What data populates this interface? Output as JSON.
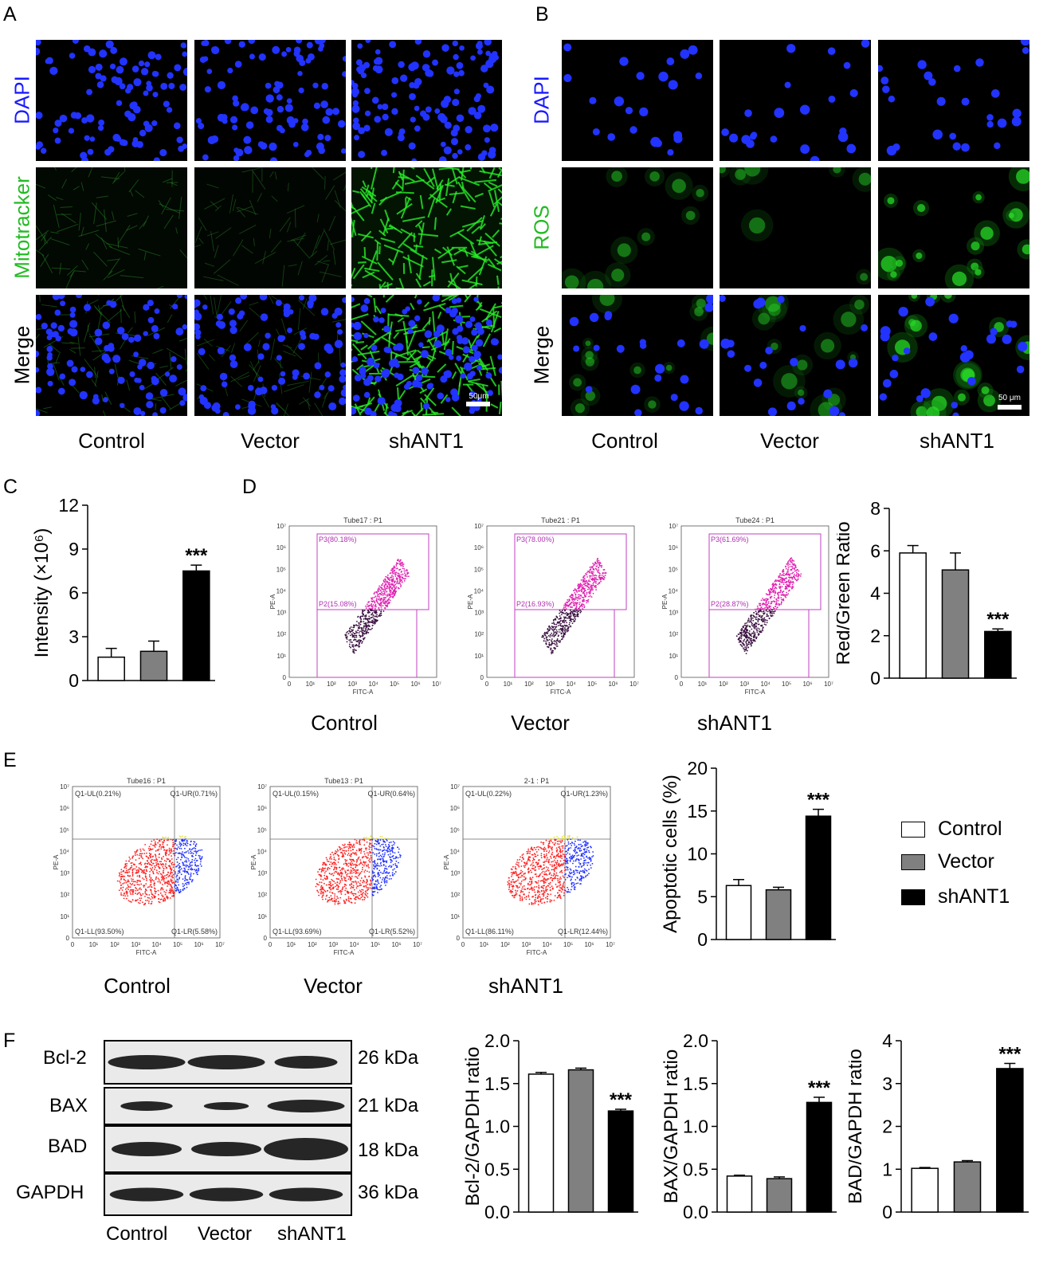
{
  "panels": {
    "A": "A",
    "B": "B",
    "C": "C",
    "D": "D",
    "E": "E",
    "F": "F"
  },
  "groups": [
    "Control",
    "Vector",
    "shANT1"
  ],
  "panelA": {
    "rows": [
      {
        "label": "DAPI",
        "color": "#1a1aff"
      },
      {
        "label": "Mitotracker",
        "color": "#22bb22"
      },
      {
        "label": "Merge",
        "color": "#000000"
      }
    ],
    "scale_bar": "50μm"
  },
  "panelB": {
    "rows": [
      {
        "label": "DAPI",
        "color": "#1a1aff"
      },
      {
        "label": "ROS",
        "color": "#22bb22"
      },
      {
        "label": "Merge",
        "color": "#000000"
      }
    ],
    "scale_bar": "50 μm"
  },
  "panelD_flow": [
    {
      "title": "Tube17 : P1",
      "p3": "P3(80.18%)",
      "p2": "P2(15.08%)"
    },
    {
      "title": "Tube21 : P1",
      "p3": "P3(78.00%)",
      "p2": "P2(16.93%)"
    },
    {
      "title": "Tube24 : P1",
      "p3": "P3(61.69%)",
      "p2": "P2(28.87%)"
    }
  ],
  "panelE_flow": [
    {
      "title": "Tube16 : P1",
      "ul": "Q1-UL(0.21%)",
      "ur": "Q1-UR(0.71%)",
      "ll": "Q1-LL(93.50%)",
      "lr": "Q1-LR(5.58%)"
    },
    {
      "title": "Tube13 : P1",
      "ul": "Q1-UL(0.15%)",
      "ur": "Q1-UR(0.64%)",
      "ll": "Q1-LL(93.69%)",
      "lr": "Q1-LR(5.52%)"
    },
    {
      "title": "2-1 : P1",
      "ul": "Q1-UL(0.22%)",
      "ur": "Q1-UR(1.23%)",
      "ll": "Q1-LL(86.11%)",
      "lr": "Q1-LR(12.44%)"
    }
  ],
  "flow_axes": {
    "x": "FITC-A",
    "y": "PE-A",
    "ticks": [
      "0",
      "10¹",
      "10²",
      "10³",
      "10⁴",
      "10⁵",
      "10⁶",
      "10⁷"
    ]
  },
  "legend": [
    {
      "label": "Control",
      "color": "#ffffff"
    },
    {
      "label": "Vector",
      "color": "#808080"
    },
    {
      "label": "shANT1",
      "color": "#000000"
    }
  ],
  "western": {
    "bands": [
      {
        "name": "Bcl-2",
        "kda": "26 kDa"
      },
      {
        "name": "BAX",
        "kda": "21 kDa"
      },
      {
        "name": "BAD",
        "kda": "18 kDa"
      },
      {
        "name": "GAPDH",
        "kda": "36 kDa"
      }
    ]
  },
  "chart_data": [
    {
      "id": "C",
      "type": "bar",
      "categories": [
        "Control",
        "Vector",
        "shANT1"
      ],
      "values": [
        1.6,
        2.0,
        7.5
      ],
      "errors": [
        0.6,
        0.7,
        0.4
      ],
      "ylabel": "Intensity (×10⁶)",
      "ylim": [
        0,
        12
      ],
      "yticks": [
        0,
        3,
        6,
        9,
        12
      ],
      "significance": [
        "",
        "",
        "***"
      ],
      "colors": [
        "#ffffff",
        "#808080",
        "#000000"
      ]
    },
    {
      "id": "D",
      "type": "bar",
      "categories": [
        "Control",
        "Vector",
        "shANT1"
      ],
      "values": [
        5.9,
        5.1,
        2.2
      ],
      "errors": [
        0.35,
        0.8,
        0.12
      ],
      "ylabel": "Red/Green Ratio",
      "ylim": [
        0,
        8
      ],
      "yticks": [
        0,
        2,
        4,
        6,
        8
      ],
      "significance": [
        "",
        "",
        "***"
      ],
      "colors": [
        "#ffffff",
        "#808080",
        "#000000"
      ]
    },
    {
      "id": "E",
      "type": "bar",
      "categories": [
        "Control",
        "Vector",
        "shANT1"
      ],
      "values": [
        6.3,
        5.8,
        14.4
      ],
      "errors": [
        0.7,
        0.3,
        0.8
      ],
      "ylabel": "Apoptotic cells (%)",
      "ylim": [
        0,
        20
      ],
      "yticks": [
        0,
        5,
        10,
        15,
        20
      ],
      "significance": [
        "",
        "",
        "***"
      ],
      "colors": [
        "#ffffff",
        "#808080",
        "#000000"
      ]
    },
    {
      "id": "F1",
      "type": "bar",
      "categories": [
        "Control",
        "Vector",
        "shANT1"
      ],
      "values": [
        1.61,
        1.66,
        1.18
      ],
      "errors": [
        0.02,
        0.02,
        0.02
      ],
      "ylabel": "Bcl-2/GAPDH ratio",
      "ylim": [
        0,
        2.0
      ],
      "yticks": [
        "0.0",
        "0.5",
        "1.0",
        "1.5",
        "2.0"
      ],
      "significance": [
        "",
        "",
        "***"
      ],
      "colors": [
        "#ffffff",
        "#808080",
        "#000000"
      ]
    },
    {
      "id": "F2",
      "type": "bar",
      "categories": [
        "Control",
        "Vector",
        "shANT1"
      ],
      "values": [
        0.42,
        0.39,
        1.28
      ],
      "errors": [
        0.01,
        0.02,
        0.06
      ],
      "ylabel": "BAX/GAPDH ratio",
      "ylim": [
        0,
        2.0
      ],
      "yticks": [
        "0.0",
        "0.5",
        "1.0",
        "1.5",
        "2.0"
      ],
      "significance": [
        "",
        "",
        "***"
      ],
      "colors": [
        "#ffffff",
        "#808080",
        "#000000"
      ]
    },
    {
      "id": "F3",
      "type": "bar",
      "categories": [
        "Control",
        "Vector",
        "shANT1"
      ],
      "values": [
        1.02,
        1.17,
        3.35
      ],
      "errors": [
        0.02,
        0.03,
        0.12
      ],
      "ylabel": "BAD/GAPDH ratio",
      "ylim": [
        0,
        4
      ],
      "yticks": [
        "0",
        "1",
        "2",
        "3",
        "4"
      ],
      "significance": [
        "",
        "",
        "***"
      ],
      "colors": [
        "#ffffff",
        "#808080",
        "#000000"
      ]
    }
  ]
}
